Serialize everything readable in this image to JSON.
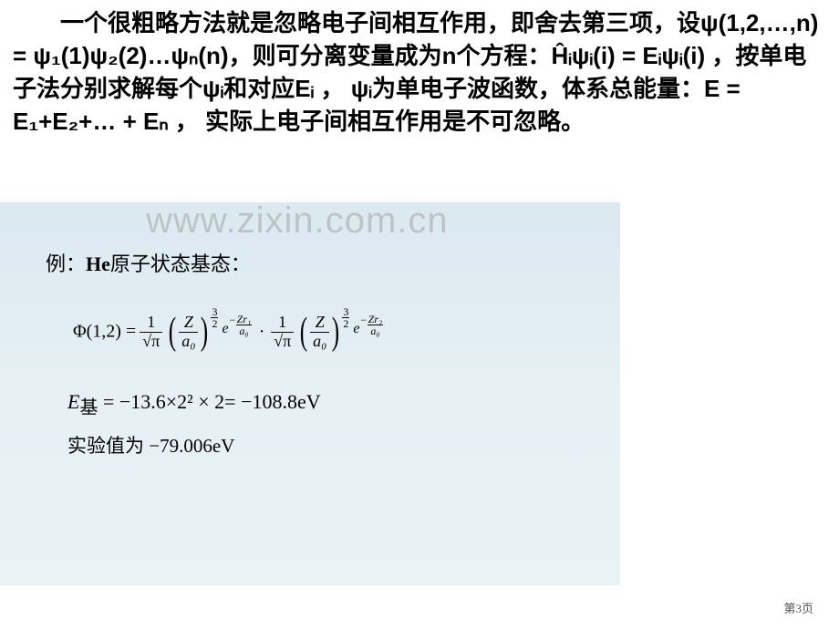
{
  "top": {
    "line_full": "　　一个很粗略方法就是忽略电子间相互作用，即舍去第三项，设ψ(1,2,…,n) = ψ₁(1)ψ₂(2)…ψₙ(n)，则可分离变量成为n个方程：Ĥᵢψᵢ(i) = Eᵢψᵢ(i) ，按单电子法分别求解每个ψᵢ和对应Eᵢ ， ψᵢ为单电子波函数，",
    "bold_tail": "体系总能量：E  =  E₁+E₂+… + Eₙ ， 实际上电子间相互作用是不可忽略。"
  },
  "watermark": "www.zixin.com.cn",
  "example": {
    "prefix": "例：",
    "he": "He",
    "rest": "原子状态基态："
  },
  "formula": {
    "phi": "Φ(1,2) =",
    "one_over_sqrtpi_num": "1",
    "one_over_sqrtpi_den": "√π",
    "Z_over_a0_num": "Z",
    "Z_over_a0_den": "a₀",
    "pow32_t": "3",
    "pow32_b": "2",
    "e": "e",
    "exp1_num": "Zr₁",
    "exp1_den": "a₀",
    "dot": "·",
    "exp2_num": "Zr₂",
    "exp2_den": "a₀"
  },
  "energy": {
    "label": "E",
    "sub": "基",
    "eq": " = −13.6×2² × 2= −108.8eV"
  },
  "experiment": {
    "text": "实验值为 ",
    "val": "−79.006eV"
  },
  "page": "第3页"
}
